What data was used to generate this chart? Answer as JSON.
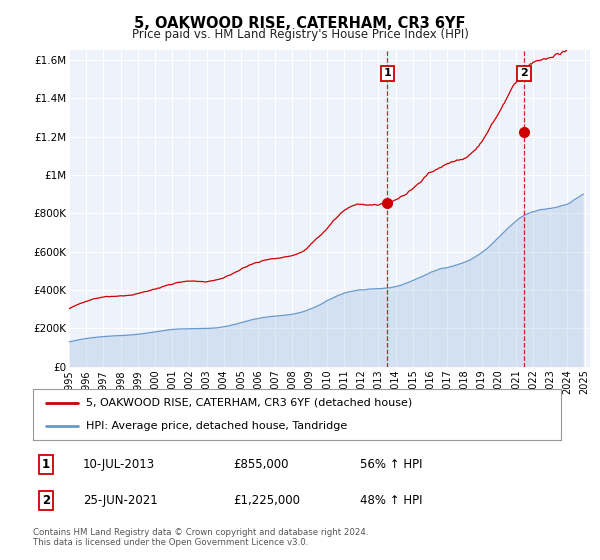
{
  "title": "5, OAKWOOD RISE, CATERHAM, CR3 6YF",
  "subtitle": "Price paid vs. HM Land Registry's House Price Index (HPI)",
  "hpi_label": "HPI: Average price, detached house, Tandridge",
  "property_label": "5, OAKWOOD RISE, CATERHAM, CR3 6YF (detached house)",
  "sale1_date": "10-JUL-2013",
  "sale1_price": 855000,
  "sale1_pct": "56% ↑ HPI",
  "sale1_year": 2013.53,
  "sale2_date": "25-JUN-2021",
  "sale2_price": 1225000,
  "sale2_pct": "48% ↑ HPI",
  "sale2_year": 2021.48,
  "property_color": "#cc0000",
  "hpi_color": "#6699cc",
  "plot_bg_color": "#eef2fb",
  "grid_color": "#ffffff",
  "ylim": [
    0,
    1650000
  ],
  "xlim_start": 1995,
  "xlim_end": 2025.3,
  "yticks": [
    0,
    200000,
    400000,
    600000,
    800000,
    1000000,
    1200000,
    1400000,
    1600000
  ],
  "ylabels": [
    "£0",
    "£200K",
    "£400K",
    "£600K",
    "£800K",
    "£1M",
    "£1.2M",
    "£1.4M",
    "£1.6M"
  ],
  "footnote1": "Contains HM Land Registry data © Crown copyright and database right 2024.",
  "footnote2": "This data is licensed under the Open Government Licence v3.0."
}
